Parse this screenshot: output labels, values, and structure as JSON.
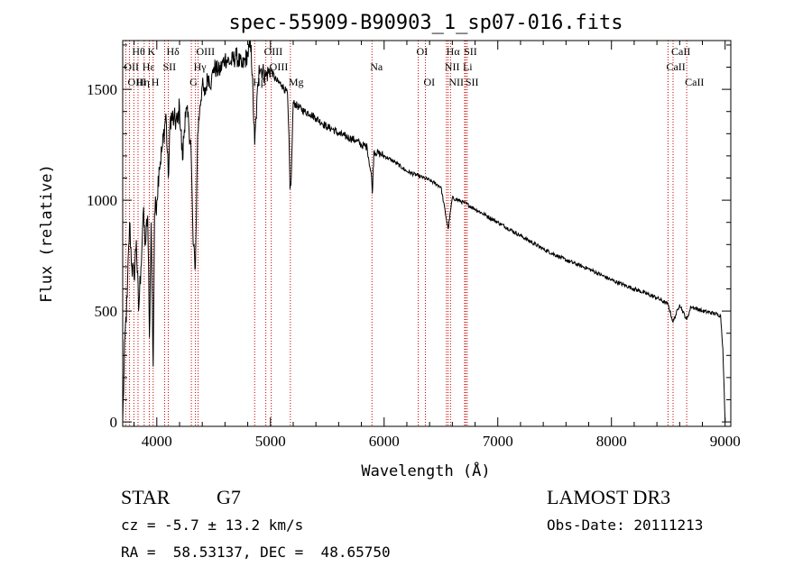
{
  "chart_data": {
    "type": "line",
    "title": "spec-55909-B90903_1_sp07-016.fits",
    "xlabel": "Wavelength (Å)",
    "ylabel": "Flux (relative)",
    "xlim": [
      3700,
      9050
    ],
    "ylim": [
      -20,
      1720
    ],
    "x_ticks": [
      4000,
      5000,
      6000,
      7000,
      8000,
      9000
    ],
    "x_tick_labels": [
      "4000",
      "5000",
      "6000",
      "7000",
      "8000",
      "9000"
    ],
    "y_ticks": [
      0,
      500,
      1000,
      1500
    ],
    "y_tick_labels": [
      "0",
      "500",
      "1000",
      "1500"
    ],
    "line_color": "#000000",
    "marker_color": "#cc0000",
    "spectrum_anchors": [
      [
        3700,
        0
      ],
      [
        3720,
        380
      ],
      [
        3740,
        560
      ],
      [
        3760,
        900
      ],
      [
        3780,
        700
      ],
      [
        3800,
        650
      ],
      [
        3820,
        820
      ],
      [
        3840,
        500
      ],
      [
        3860,
        700
      ],
      [
        3880,
        940
      ],
      [
        3900,
        800
      ],
      [
        3920,
        930
      ],
      [
        3935,
        380
      ],
      [
        3950,
        900
      ],
      [
        3968,
        250
      ],
      [
        3980,
        940
      ],
      [
        4000,
        1000
      ],
      [
        4020,
        1150
      ],
      [
        4050,
        1240
      ],
      [
        4080,
        1390
      ],
      [
        4101,
        1100
      ],
      [
        4120,
        1380
      ],
      [
        4150,
        1360
      ],
      [
        4180,
        1350
      ],
      [
        4200,
        1420
      ],
      [
        4226,
        1180
      ],
      [
        4250,
        1400
      ],
      [
        4280,
        1350
      ],
      [
        4300,
        1250
      ],
      [
        4320,
        800
      ],
      [
        4340,
        700
      ],
      [
        4360,
        1300
      ],
      [
        4380,
        1430
      ],
      [
        4400,
        1520
      ],
      [
        4420,
        1470
      ],
      [
        4450,
        1560
      ],
      [
        4480,
        1530
      ],
      [
        4500,
        1600
      ],
      [
        4550,
        1580
      ],
      [
        4600,
        1640
      ],
      [
        4650,
        1620
      ],
      [
        4700,
        1650
      ],
      [
        4750,
        1600
      ],
      [
        4800,
        1660
      ],
      [
        4830,
        1700
      ],
      [
        4861,
        1250
      ],
      [
        4900,
        1610
      ],
      [
        4957,
        1560
      ],
      [
        5000,
        1590
      ],
      [
        5050,
        1540
      ],
      [
        5100,
        1520
      ],
      [
        5150,
        1480
      ],
      [
        5167,
        1200
      ],
      [
        5172,
        1050
      ],
      [
        5183,
        1100
      ],
      [
        5200,
        1440
      ],
      [
        5250,
        1420
      ],
      [
        5300,
        1400
      ],
      [
        5350,
        1390
      ],
      [
        5400,
        1370
      ],
      [
        5450,
        1350
      ],
      [
        5500,
        1330
      ],
      [
        5550,
        1320
      ],
      [
        5600,
        1300
      ],
      [
        5650,
        1290
      ],
      [
        5700,
        1280
      ],
      [
        5750,
        1270
      ],
      [
        5800,
        1250
      ],
      [
        5850,
        1240
      ],
      [
        5890,
        1100
      ],
      [
        5896,
        1030
      ],
      [
        5910,
        1220
      ],
      [
        6000,
        1200
      ],
      [
        6100,
        1170
      ],
      [
        6200,
        1130
      ],
      [
        6300,
        1110
      ],
      [
        6400,
        1090
      ],
      [
        6500,
        1060
      ],
      [
        6563,
        870
      ],
      [
        6600,
        1010
      ],
      [
        6700,
        990
      ],
      [
        6800,
        960
      ],
      [
        6900,
        930
      ],
      [
        7000,
        900
      ],
      [
        7200,
        840
      ],
      [
        7400,
        780
      ],
      [
        7600,
        730
      ],
      [
        7800,
        690
      ],
      [
        8000,
        640
      ],
      [
        8200,
        600
      ],
      [
        8400,
        560
      ],
      [
        8498,
        530
      ],
      [
        8542,
        450
      ],
      [
        8600,
        530
      ],
      [
        8662,
        460
      ],
      [
        8700,
        520
      ],
      [
        8800,
        500
      ],
      [
        8900,
        490
      ],
      [
        8960,
        480
      ],
      [
        8980,
        330
      ],
      [
        9000,
        0
      ]
    ],
    "line_markers": [
      {
        "name": "Hθ",
        "wavelength": 3798,
        "row": 1
      },
      {
        "name": "OII",
        "wavelength": 3727,
        "row": 2
      },
      {
        "name": "OIII",
        "wavelength": 3760,
        "row": 3
      },
      {
        "name": "Hη",
        "wavelength": 3835,
        "row": 3
      },
      {
        "name": "Hε",
        "wavelength": 3889,
        "row": 2
      },
      {
        "name": "K",
        "wavelength": 3934,
        "row": 1
      },
      {
        "name": "H",
        "wavelength": 3968,
        "row": 3
      },
      {
        "name": "SII",
        "wavelength": 4069,
        "row": 2
      },
      {
        "name": "Hδ",
        "wavelength": 4101,
        "row": 1
      },
      {
        "name": "G",
        "wavelength": 4304,
        "row": 3
      },
      {
        "name": "OIII",
        "wavelength": 4363,
        "row": 1
      },
      {
        "name": "Hγ",
        "wavelength": 4340,
        "row": 2
      },
      {
        "name": "Hβ",
        "wavelength": 4861,
        "row": 3
      },
      {
        "name": "OIII",
        "wavelength": 4959,
        "row": 1
      },
      {
        "name": "OIII",
        "wavelength": 5007,
        "row": 2
      },
      {
        "name": "Mg",
        "wavelength": 5175,
        "row": 3
      },
      {
        "name": "Na",
        "wavelength": 5893,
        "row": 2
      },
      {
        "name": "OI",
        "wavelength": 6300,
        "row": 1
      },
      {
        "name": "OI",
        "wavelength": 6363,
        "row": 3
      },
      {
        "name": "NII",
        "wavelength": 6548,
        "row": 2
      },
      {
        "name": "Hα",
        "wavelength": 6563,
        "row": 1
      },
      {
        "name": "NII",
        "wavelength": 6584,
        "row": 3
      },
      {
        "name": "SII",
        "wavelength": 6717,
        "row": 1
      },
      {
        "name": "Li",
        "wavelength": 6708,
        "row": 2
      },
      {
        "name": "SII",
        "wavelength": 6731,
        "row": 3
      },
      {
        "name": "CaII",
        "wavelength": 8498,
        "row": 2
      },
      {
        "name": "CaII",
        "wavelength": 8542,
        "row": 1
      },
      {
        "name": "CaII",
        "wavelength": 8662,
        "row": 3
      }
    ]
  },
  "info": {
    "class_label": "STAR",
    "subclass": "G7",
    "survey": "LAMOST DR3",
    "cz_line": "cz = -5.7 ± 13.2 km/s",
    "obs_date_line": "Obs-Date: 20111213",
    "radec_line": "RA =  58.53137, DEC =  48.65750"
  }
}
